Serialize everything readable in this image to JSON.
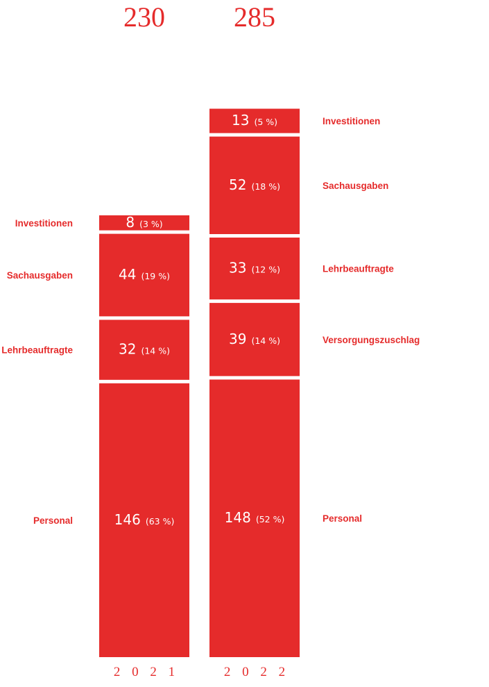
{
  "chart_data": {
    "type": "bar",
    "stacked": true,
    "color": "#e52b2b",
    "categories": [
      "2021",
      "2022"
    ],
    "totals": [
      "230",
      "285"
    ],
    "year_labels": [
      "2 0 2 1",
      "2 0 2 2"
    ],
    "series": [
      {
        "name": "Personal",
        "values": [
          146,
          148
        ],
        "shares": [
          "(63 %)",
          "(52 %)"
        ]
      },
      {
        "name": "Versorgungszuschlag",
        "values": [
          null,
          39
        ],
        "shares": [
          null,
          "(14 %)"
        ]
      },
      {
        "name": "Lehrbeauftragte",
        "values": [
          32,
          33
        ],
        "shares": [
          "(14 %)",
          "(12 %)"
        ]
      },
      {
        "name": "Sachausgaben",
        "values": [
          44,
          52
        ],
        "shares": [
          "(19 %)",
          "(18 %)"
        ]
      },
      {
        "name": "Investitionen",
        "values": [
          8,
          13
        ],
        "shares": [
          "(3 %)",
          "(5 %)"
        ]
      }
    ]
  }
}
